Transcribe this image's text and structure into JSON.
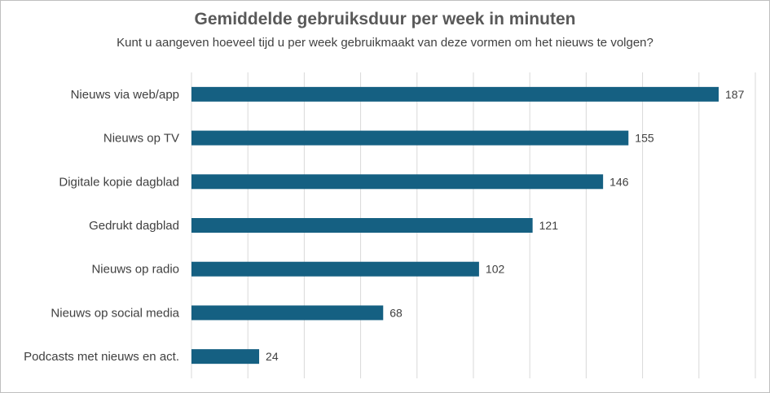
{
  "chart_data": {
    "type": "bar",
    "orientation": "horizontal",
    "title": "Gemiddelde gebruiksduur per week in minuten",
    "subtitle": "Kunt u aangeven hoeveel tijd u per week gebruikmaakt van deze vormen om het nieuws te volgen?",
    "categories": [
      "Nieuws via web/app",
      "Nieuws op TV",
      "Digitale kopie dagblad",
      "Gedrukt dagblad",
      "Nieuws op radio",
      "Nieuws op social media",
      "Podcasts met nieuws en act."
    ],
    "values": [
      187,
      155,
      146,
      121,
      102,
      68,
      24
    ],
    "xlim": [
      0,
      200
    ],
    "grid": true,
    "legend": "none",
    "bar_color": "#156082",
    "data_labels": true
  }
}
